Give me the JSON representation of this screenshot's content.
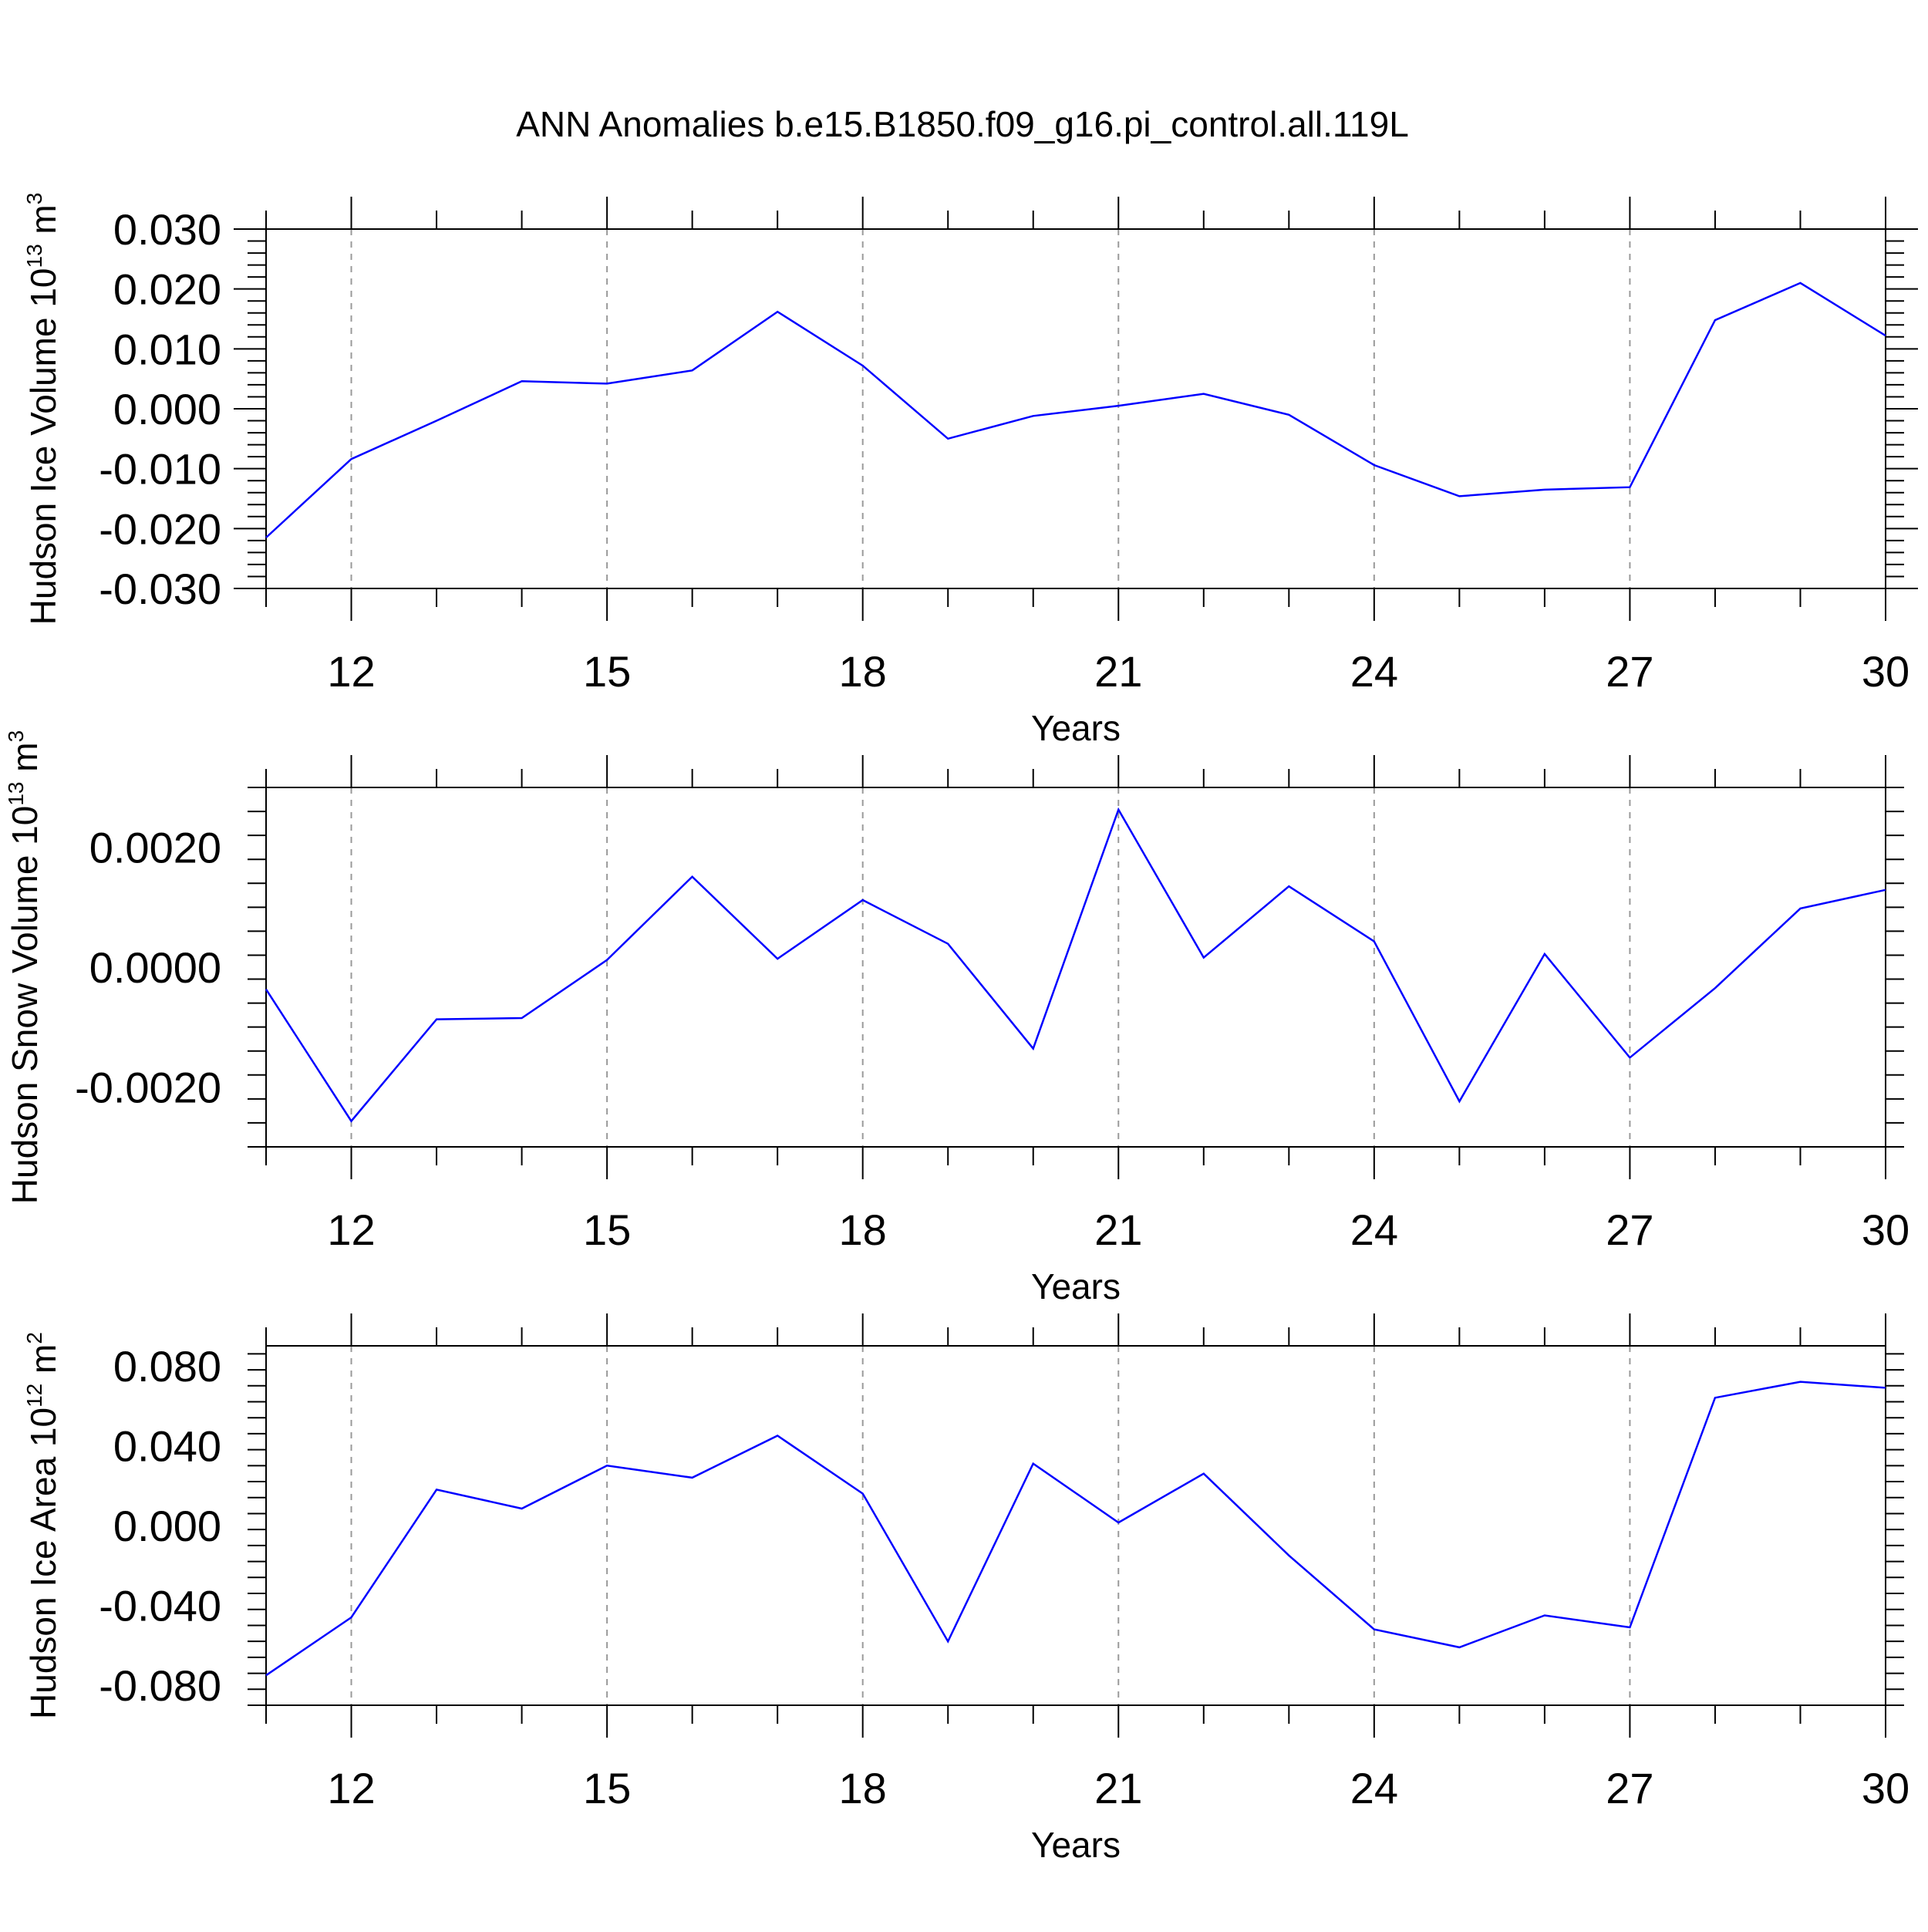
{
  "title": "ANN Anomalies b.e15.B1850.f09_g16.pi_control.all.119L",
  "line_color": "#0000ff",
  "chart_data": [
    {
      "type": "line",
      "xlabel": "Years",
      "ylabel": {
        "text": "Hudson Ice Volume 10",
        "sup": "13",
        "unit": " m",
        "unit_sup": "3"
      },
      "xlim": [
        11,
        30
      ],
      "ylim": [
        -0.03,
        0.03
      ],
      "x_ticks": [
        12,
        15,
        18,
        21,
        24,
        27,
        30
      ],
      "x_tick_labels": [
        "12",
        "15",
        "18",
        "21",
        "24",
        "27",
        "30"
      ],
      "y_ticks": [
        -0.03,
        -0.02,
        -0.01,
        0.0,
        0.01,
        0.02,
        0.03
      ],
      "y_tick_labels": [
        "-0.030",
        "-0.020",
        "-0.010",
        "0.000",
        "0.010",
        "0.020",
        "0.030"
      ],
      "x": [
        11,
        12,
        13,
        14,
        15,
        16,
        17,
        18,
        19,
        20,
        21,
        22,
        23,
        24,
        25,
        26,
        27,
        28,
        29,
        30
      ],
      "y": [
        -0.0215,
        -0.0084,
        -0.002,
        0.0046,
        0.0042,
        0.0064,
        0.0162,
        0.0072,
        -0.005,
        -0.0012,
        0.0005,
        0.0025,
        -0.001,
        -0.0094,
        -0.0146,
        -0.0135,
        -0.0131,
        0.0148,
        0.021,
        0.0122
      ]
    },
    {
      "type": "line",
      "xlabel": "Years",
      "ylabel": {
        "text": "Hudson Snow Volume 10",
        "sup": "13",
        "unit": " m",
        "unit_sup": "3"
      },
      "xlim": [
        11,
        30
      ],
      "ylim": [
        -0.003,
        0.003
      ],
      "x_ticks": [
        12,
        15,
        18,
        21,
        24,
        27,
        30
      ],
      "x_tick_labels": [
        "12",
        "15",
        "18",
        "21",
        "24",
        "27",
        "30"
      ],
      "y_ticks": [
        -0.002,
        0.0,
        0.002
      ],
      "y_tick_labels": [
        "-0.0020",
        "0.0000",
        "0.0020"
      ],
      "x": [
        11,
        12,
        13,
        14,
        15,
        16,
        17,
        18,
        19,
        20,
        21,
        22,
        23,
        24,
        25,
        26,
        27,
        28,
        29,
        30
      ],
      "y": [
        -0.00037,
        -0.00257,
        -0.00087,
        -0.00085,
        0.00012,
        0.00151,
        0.00014,
        0.00112,
        0.00039,
        -0.00136,
        0.00263,
        0.00016,
        0.00135,
        0.00043,
        -0.00224,
        0.00022,
        -0.00151,
        -0.00035,
        0.00098,
        0.00129
      ]
    },
    {
      "type": "line",
      "xlabel": "Years",
      "ylabel": {
        "text": "Hudson Ice Area 10",
        "sup": "12",
        "unit": " m",
        "unit_sup": "2"
      },
      "xlim": [
        11,
        30
      ],
      "ylim": [
        -0.09,
        0.09
      ],
      "x_ticks": [
        12,
        15,
        18,
        21,
        24,
        27,
        30
      ],
      "x_tick_labels": [
        "12",
        "15",
        "18",
        "21",
        "24",
        "27",
        "30"
      ],
      "y_ticks": [
        -0.08,
        -0.04,
        0.0,
        0.04,
        0.08
      ],
      "y_tick_labels": [
        "-0.080",
        "-0.040",
        "0.000",
        "0.040",
        "0.080"
      ],
      "x": [
        11,
        12,
        13,
        14,
        15,
        16,
        17,
        18,
        19,
        20,
        21,
        22,
        23,
        24,
        25,
        26,
        27,
        28,
        29,
        30
      ],
      "y": [
        -0.075,
        -0.046,
        0.018,
        0.0085,
        0.03,
        0.024,
        0.045,
        0.016,
        -0.058,
        0.031,
        0.0015,
        0.026,
        -0.015,
        -0.052,
        -0.061,
        -0.045,
        -0.051,
        0.064,
        0.072,
        0.069
      ]
    }
  ]
}
